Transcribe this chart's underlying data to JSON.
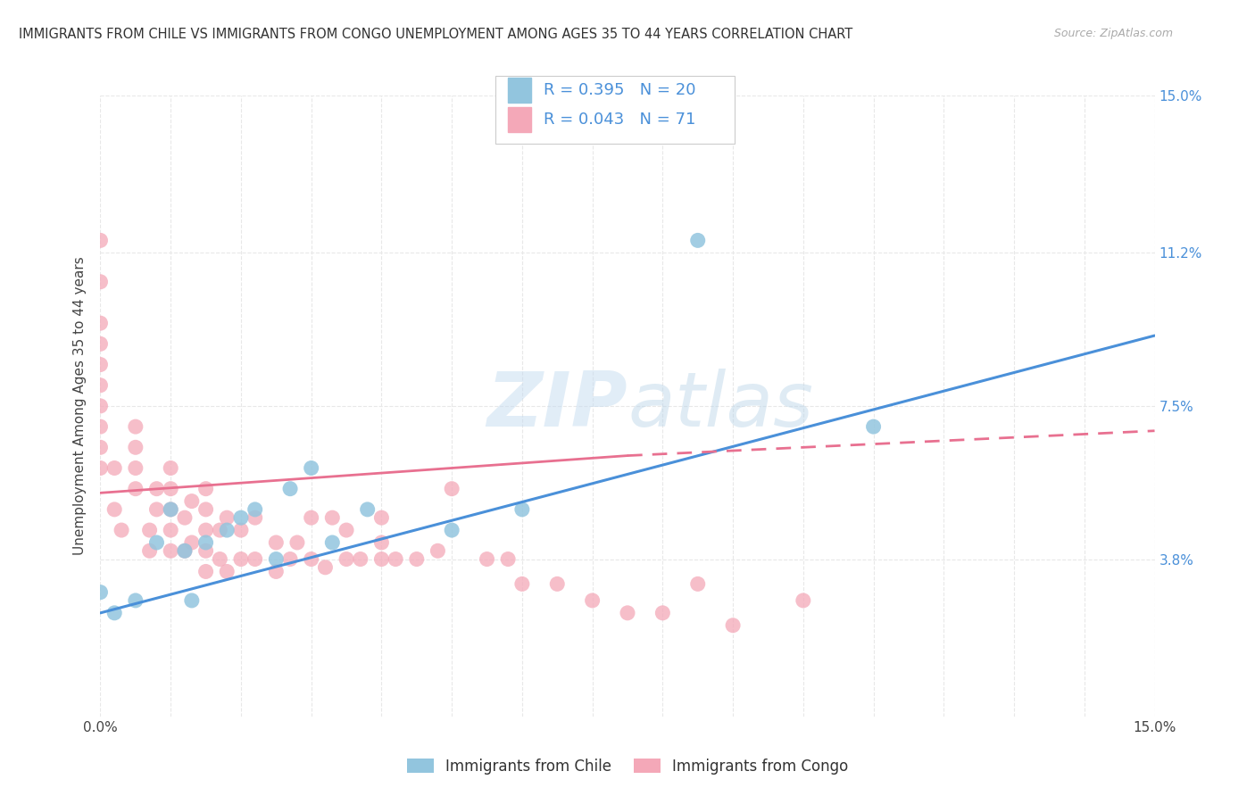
{
  "title": "IMMIGRANTS FROM CHILE VS IMMIGRANTS FROM CONGO UNEMPLOYMENT AMONG AGES 35 TO 44 YEARS CORRELATION CHART",
  "source": "Source: ZipAtlas.com",
  "ylabel": "Unemployment Among Ages 35 to 44 years",
  "xlim": [
    0.0,
    0.15
  ],
  "ylim": [
    0.0,
    0.15
  ],
  "watermark_text": "ZIPatlas",
  "chile_color": "#92C5DE",
  "chile_line_color": "#4A90D9",
  "congo_color": "#F4A8B8",
  "congo_line_color": "#E87090",
  "legend_text_color": "#4A90D9",
  "chile_R": "0.395",
  "chile_N": "20",
  "congo_R": "0.043",
  "congo_N": "71",
  "chile_scatter_x": [
    0.0,
    0.002,
    0.005,
    0.008,
    0.01,
    0.012,
    0.013,
    0.015,
    0.018,
    0.02,
    0.022,
    0.025,
    0.027,
    0.03,
    0.033,
    0.038,
    0.05,
    0.06,
    0.085,
    0.11
  ],
  "chile_scatter_y": [
    0.03,
    0.025,
    0.028,
    0.042,
    0.05,
    0.04,
    0.028,
    0.042,
    0.045,
    0.048,
    0.05,
    0.038,
    0.055,
    0.06,
    0.042,
    0.05,
    0.045,
    0.05,
    0.115,
    0.07
  ],
  "congo_scatter_x": [
    0.0,
    0.0,
    0.0,
    0.0,
    0.0,
    0.0,
    0.0,
    0.0,
    0.0,
    0.0,
    0.002,
    0.002,
    0.003,
    0.005,
    0.005,
    0.005,
    0.005,
    0.007,
    0.007,
    0.008,
    0.008,
    0.01,
    0.01,
    0.01,
    0.01,
    0.01,
    0.012,
    0.012,
    0.013,
    0.013,
    0.015,
    0.015,
    0.015,
    0.015,
    0.015,
    0.017,
    0.017,
    0.018,
    0.018,
    0.02,
    0.02,
    0.022,
    0.022,
    0.025,
    0.025,
    0.027,
    0.028,
    0.03,
    0.03,
    0.032,
    0.033,
    0.035,
    0.035,
    0.037,
    0.04,
    0.04,
    0.04,
    0.042,
    0.045,
    0.048,
    0.05,
    0.055,
    0.058,
    0.06,
    0.065,
    0.07,
    0.075,
    0.08,
    0.085,
    0.09,
    0.1
  ],
  "congo_scatter_y": [
    0.06,
    0.065,
    0.07,
    0.075,
    0.08,
    0.085,
    0.09,
    0.095,
    0.105,
    0.115,
    0.05,
    0.06,
    0.045,
    0.055,
    0.06,
    0.065,
    0.07,
    0.04,
    0.045,
    0.05,
    0.055,
    0.04,
    0.045,
    0.05,
    0.055,
    0.06,
    0.04,
    0.048,
    0.042,
    0.052,
    0.035,
    0.04,
    0.045,
    0.05,
    0.055,
    0.038,
    0.045,
    0.035,
    0.048,
    0.038,
    0.045,
    0.038,
    0.048,
    0.035,
    0.042,
    0.038,
    0.042,
    0.038,
    0.048,
    0.036,
    0.048,
    0.038,
    0.045,
    0.038,
    0.038,
    0.042,
    0.048,
    0.038,
    0.038,
    0.04,
    0.055,
    0.038,
    0.038,
    0.032,
    0.032,
    0.028,
    0.025,
    0.025,
    0.032,
    0.022,
    0.028
  ],
  "chile_trend": [
    0.0,
    0.025,
    0.15,
    0.092
  ],
  "congo_trend_solid": [
    0.0,
    0.054,
    0.075,
    0.063
  ],
  "congo_trend_dashed": [
    0.075,
    0.063,
    0.15,
    0.069
  ],
  "background_color": "#FFFFFF",
  "grid_color": "#E8E8E8",
  "ytick_vals": [
    0.038,
    0.075,
    0.112,
    0.15
  ],
  "ytick_labels": [
    "3.8%",
    "7.5%",
    "11.2%",
    "15.0%"
  ],
  "title_fontsize": 10.5,
  "tick_fontsize": 11,
  "legend_fontsize": 13,
  "ylabel_fontsize": 11
}
